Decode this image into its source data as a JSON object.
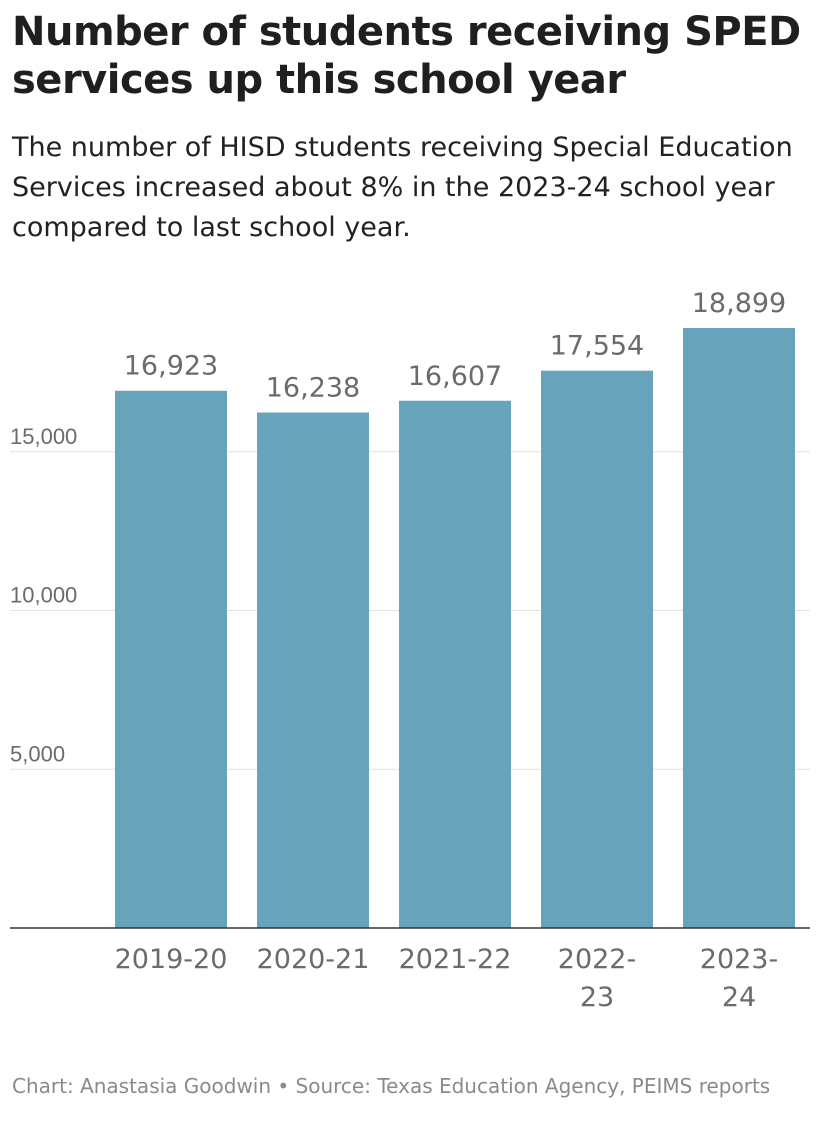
{
  "title": "Number of students receiving SPED services up this school year",
  "subtitle": "The number of HISD students receiving Special Education Services increased about 8% in the 2023-24 school year compared to last school year.",
  "footer": "Chart: Anastasia Goodwin • Source: Texas Education Agency, PEIMS reports",
  "colors": {
    "bar": "#67a3ba",
    "grid": "#e2e2e2",
    "axis": "#333333",
    "text": "#6b6b6b"
  },
  "chart_data": {
    "type": "bar",
    "title": "Number of students receiving SPED services up this school year",
    "xlabel": "",
    "ylabel": "",
    "categories": [
      "2019-20",
      "2020-21",
      "2021-22",
      "2022-23",
      "2023-24"
    ],
    "category_lines": [
      [
        "2019-20"
      ],
      [
        "2020-21"
      ],
      [
        "2021-22"
      ],
      [
        "2022-",
        "23"
      ],
      [
        "2023-",
        "24"
      ]
    ],
    "values": [
      16923,
      16238,
      16607,
      17554,
      18899
    ],
    "value_labels": [
      "16,923",
      "16,238",
      "16,607",
      "17,554",
      "18,899"
    ],
    "yticks": [
      5000,
      10000,
      15000
    ],
    "ytick_labels": [
      "5,000",
      "10,000",
      "15,000"
    ],
    "ylim": [
      0,
      18899
    ],
    "grid": true,
    "legend": "none"
  }
}
